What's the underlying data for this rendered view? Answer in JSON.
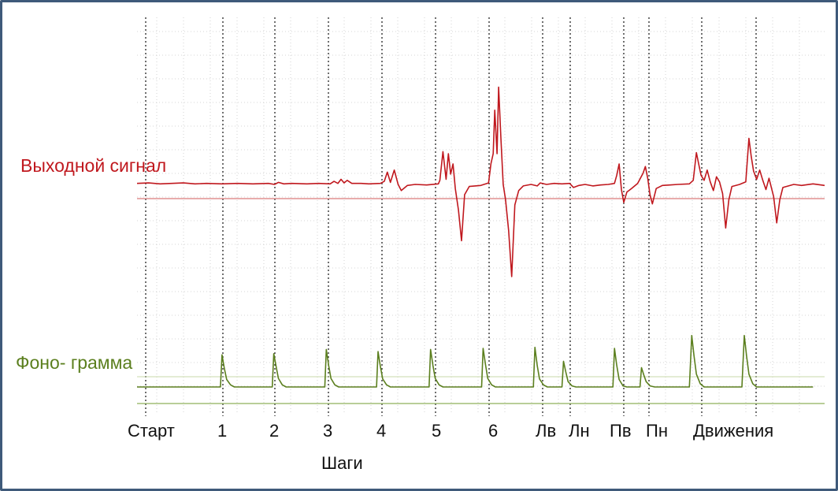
{
  "chart_data": {
    "type": "line",
    "title": "",
    "colors": {
      "output_signal": "#c0181e",
      "phonogram": "#5b7f1e",
      "grid": "#c9c9c9",
      "markers": "#222222",
      "border": "#3f5a7a"
    },
    "row_labels": {
      "output_signal": "Выходной сигнал",
      "phonogram": "Фоно- грамма"
    },
    "x_axis_title": "Шаги",
    "event_labels": [
      "Старт",
      "1",
      "2",
      "3",
      "4",
      "5",
      "6",
      "Лв",
      "Лн",
      "Пв",
      "Пн",
      "Движения"
    ],
    "grid": true,
    "series": [
      {
        "key": "output_signal",
        "units": "relative amplitude, + up",
        "points": [
          [
            0,
            2
          ],
          [
            15,
            3
          ],
          [
            30,
            1
          ],
          [
            45,
            2
          ],
          [
            60,
            3
          ],
          [
            75,
            1
          ],
          [
            90,
            2
          ],
          [
            110,
            1
          ],
          [
            130,
            2
          ],
          [
            150,
            1
          ],
          [
            170,
            2
          ],
          [
            178,
            0
          ],
          [
            183,
            4
          ],
          [
            190,
            1
          ],
          [
            200,
            2
          ],
          [
            220,
            1
          ],
          [
            235,
            2
          ],
          [
            250,
            1
          ],
          [
            255,
            6
          ],
          [
            260,
            2
          ],
          [
            264,
            10
          ],
          [
            268,
            3
          ],
          [
            272,
            8
          ],
          [
            278,
            2
          ],
          [
            290,
            2
          ],
          [
            300,
            1
          ],
          [
            315,
            2
          ],
          [
            320,
            6
          ],
          [
            324,
            24
          ],
          [
            328,
            4
          ],
          [
            333,
            28
          ],
          [
            338,
            0
          ],
          [
            342,
            -12
          ],
          [
            350,
            -2
          ],
          [
            360,
            0
          ],
          [
            375,
            -1
          ],
          [
            390,
            1
          ],
          [
            392,
            8
          ],
          [
            396,
            64
          ],
          [
            400,
            10
          ],
          [
            403,
            60
          ],
          [
            406,
            20
          ],
          [
            409,
            40
          ],
          [
            412,
            -8
          ],
          [
            416,
            -50
          ],
          [
            420,
            -110
          ],
          [
            424,
            -20
          ],
          [
            430,
            -4
          ],
          [
            445,
            -2
          ],
          [
            455,
            3
          ],
          [
            458,
            40
          ],
          [
            461,
            60
          ],
          [
            463,
            145
          ],
          [
            466,
            60
          ],
          [
            468,
            190
          ],
          [
            471,
            90
          ],
          [
            474,
            0
          ],
          [
            477,
            -30
          ],
          [
            481,
            -90
          ],
          [
            485,
            -180
          ],
          [
            489,
            -40
          ],
          [
            494,
            -12
          ],
          [
            500,
            -3
          ],
          [
            510,
            0
          ],
          [
            518,
            -3
          ],
          [
            522,
            3
          ],
          [
            530,
            0
          ],
          [
            540,
            2
          ],
          [
            550,
            1
          ],
          [
            560,
            2
          ],
          [
            565,
            -6
          ],
          [
            572,
            -2
          ],
          [
            580,
            0
          ],
          [
            590,
            -3
          ],
          [
            600,
            -1
          ],
          [
            610,
            0
          ],
          [
            618,
            2
          ],
          [
            621,
            18
          ],
          [
            624,
            40
          ],
          [
            627,
            -10
          ],
          [
            630,
            -35
          ],
          [
            634,
            -15
          ],
          [
            640,
            -8
          ],
          [
            648,
            2
          ],
          [
            655,
            22
          ],
          [
            658,
            35
          ],
          [
            661,
            12
          ],
          [
            664,
            -20
          ],
          [
            667,
            -38
          ],
          [
            672,
            -8
          ],
          [
            680,
            -2
          ],
          [
            690,
            -1
          ],
          [
            700,
            0
          ],
          [
            715,
            1
          ],
          [
            720,
            8
          ],
          [
            724,
            62
          ],
          [
            727,
            40
          ],
          [
            730,
            18
          ],
          [
            734,
            8
          ],
          [
            738,
            28
          ],
          [
            742,
            5
          ],
          [
            746,
            -12
          ],
          [
            750,
            15
          ],
          [
            754,
            5
          ],
          [
            758,
            -18
          ],
          [
            762,
            -85
          ],
          [
            766,
            -30
          ],
          [
            770,
            -4
          ],
          [
            780,
            0
          ],
          [
            788,
            5
          ],
          [
            792,
            90
          ],
          [
            795,
            55
          ],
          [
            798,
            26
          ],
          [
            802,
            10
          ],
          [
            806,
            28
          ],
          [
            810,
            8
          ],
          [
            814,
            -10
          ],
          [
            818,
            12
          ],
          [
            824,
            -24
          ],
          [
            828,
            -75
          ],
          [
            832,
            -30
          ],
          [
            836,
            -6
          ],
          [
            850,
            0
          ],
          [
            860,
            -2
          ],
          [
            875,
            1
          ],
          [
            890,
            -2
          ]
        ]
      },
      {
        "key": "phonogram",
        "units": "relative amplitude",
        "points": [
          [
            0,
            0
          ],
          [
            108,
            0
          ],
          [
            110,
            60
          ],
          [
            113,
            35
          ],
          [
            116,
            14
          ],
          [
            121,
            4
          ],
          [
            126,
            0
          ],
          [
            175,
            0
          ],
          [
            177,
            62
          ],
          [
            180,
            38
          ],
          [
            183,
            16
          ],
          [
            188,
            4
          ],
          [
            193,
            0
          ],
          [
            243,
            0
          ],
          [
            245,
            70
          ],
          [
            248,
            40
          ],
          [
            251,
            16
          ],
          [
            256,
            4
          ],
          [
            261,
            0
          ],
          [
            310,
            0
          ],
          [
            312,
            66
          ],
          [
            315,
            38
          ],
          [
            318,
            15
          ],
          [
            323,
            4
          ],
          [
            328,
            0
          ],
          [
            378,
            0
          ],
          [
            380,
            70
          ],
          [
            383,
            40
          ],
          [
            386,
            16
          ],
          [
            391,
            4
          ],
          [
            396,
            0
          ],
          [
            446,
            0
          ],
          [
            448,
            72
          ],
          [
            451,
            42
          ],
          [
            454,
            16
          ],
          [
            459,
            4
          ],
          [
            464,
            0
          ],
          [
            513,
            0
          ],
          [
            515,
            74
          ],
          [
            518,
            40
          ],
          [
            521,
            15
          ],
          [
            526,
            4
          ],
          [
            531,
            0
          ],
          [
            550,
            0
          ],
          [
            552,
            48
          ],
          [
            555,
            28
          ],
          [
            558,
            10
          ],
          [
            563,
            2
          ],
          [
            568,
            0
          ],
          [
            616,
            0
          ],
          [
            618,
            72
          ],
          [
            621,
            40
          ],
          [
            624,
            14
          ],
          [
            629,
            2
          ],
          [
            634,
            0
          ],
          [
            651,
            0
          ],
          [
            653,
            36
          ],
          [
            656,
            22
          ],
          [
            659,
            10
          ],
          [
            664,
            2
          ],
          [
            670,
            0
          ],
          [
            715,
            0
          ],
          [
            718,
            96
          ],
          [
            721,
            58
          ],
          [
            724,
            24
          ],
          [
            729,
            6
          ],
          [
            734,
            0
          ],
          [
            783,
            0
          ],
          [
            786,
            96
          ],
          [
            789,
            58
          ],
          [
            792,
            24
          ],
          [
            797,
            6
          ],
          [
            802,
            0
          ],
          [
            875,
            0
          ]
        ]
      }
    ]
  }
}
